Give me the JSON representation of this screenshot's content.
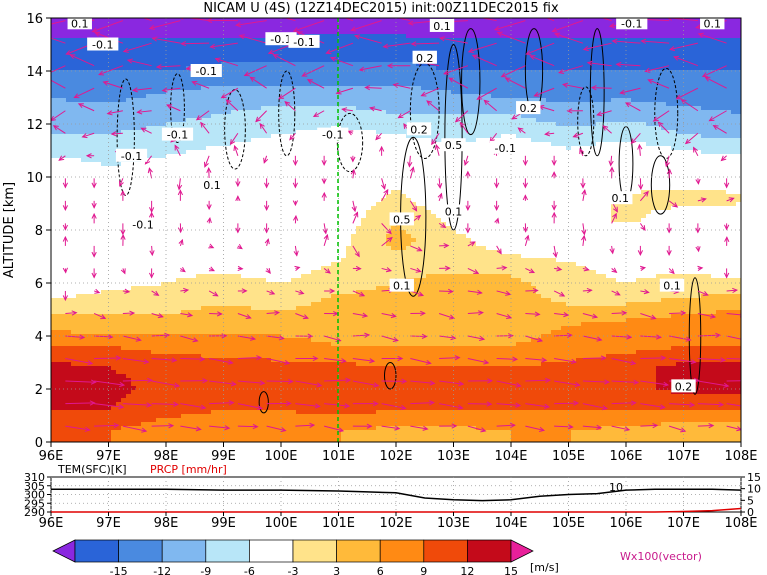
{
  "header": {
    "title": "NICAM U (4S) (12Z14DEC2015) init:00Z11DEC2015 fix"
  },
  "colors": {
    "marker_line": "#00c000",
    "vector": "#e01890",
    "contour": "#000000"
  },
  "chart_data": [
    {
      "type": "heatmap",
      "title": "NICAM U (4S) (12Z14DEC2015) init:00Z11DEC2015 fix",
      "ylabel": "ALTITUDE [km]",
      "x_ticks": [
        "96E",
        "97E",
        "98E",
        "99E",
        "100E",
        "101E",
        "102E",
        "103E",
        "104E",
        "105E",
        "106E",
        "107E",
        "108E"
      ],
      "x_values": [
        96,
        97,
        98,
        99,
        100,
        101,
        102,
        103,
        104,
        105,
        106,
        107,
        108
      ],
      "y_ticks": [
        "0",
        "2",
        "4",
        "6",
        "8",
        "10",
        "12",
        "14",
        "16"
      ],
      "y_values": [
        0,
        2,
        4,
        6,
        8,
        10,
        12,
        14,
        16
      ],
      "xlim": [
        96,
        108
      ],
      "ylim": [
        0,
        16
      ],
      "marker_longitude": 101,
      "u_field_rows": [
        {
          "alt_range": [
            0,
            0.8
          ],
          "values": [
            12,
            12,
            10,
            10,
            9,
            9,
            8,
            8,
            9,
            9,
            8,
            7,
            6
          ]
        },
        {
          "alt_range": [
            0.8,
            1.6
          ],
          "values": [
            15,
            15,
            13,
            12,
            12,
            13,
            12,
            12,
            12,
            12,
            12,
            12,
            12
          ]
        },
        {
          "alt_range": [
            1.6,
            2.4
          ],
          "values": [
            16,
            16,
            14,
            14,
            14,
            14,
            13,
            13,
            13,
            14,
            14,
            16,
            16
          ]
        },
        {
          "alt_range": [
            2.4,
            3.2
          ],
          "values": [
            16,
            15,
            14,
            14,
            13,
            13,
            12,
            12,
            12,
            13,
            14,
            16,
            16
          ]
        },
        {
          "alt_range": [
            3.2,
            4.0
          ],
          "values": [
            12,
            12,
            11,
            10,
            10,
            9,
            9,
            9,
            9,
            10,
            11,
            12,
            12
          ]
        },
        {
          "alt_range": [
            4.0,
            4.8
          ],
          "values": [
            8,
            7,
            7,
            8,
            8,
            8,
            8,
            8,
            8,
            9,
            10,
            11,
            12
          ]
        },
        {
          "alt_range": [
            4.8,
            5.6
          ],
          "values": [
            4,
            5,
            5,
            6,
            5,
            7,
            7,
            8,
            7,
            6,
            6,
            7,
            8
          ]
        },
        {
          "alt_range": [
            5.6,
            6.4
          ],
          "values": [
            0,
            2,
            3,
            4,
            3,
            5,
            6,
            7,
            7,
            4,
            3,
            4,
            4
          ]
        },
        {
          "alt_range": [
            6.4,
            7.2
          ],
          "values": [
            0,
            0,
            2,
            2,
            1,
            3,
            5,
            5,
            4,
            3,
            2,
            2,
            0
          ]
        },
        {
          "alt_range": [
            7.2,
            8.0
          ],
          "values": [
            0,
            0,
            0,
            3,
            0,
            2,
            7,
            4,
            1,
            0,
            0,
            0,
            0
          ]
        },
        {
          "alt_range": [
            8.0,
            8.8
          ],
          "values": [
            0,
            0,
            0,
            0,
            0,
            1,
            6,
            2,
            0,
            0,
            4,
            0,
            0
          ]
        },
        {
          "alt_range": [
            8.8,
            9.6
          ],
          "values": [
            0,
            0,
            0,
            0,
            0,
            0,
            4,
            0,
            0,
            0,
            4,
            5,
            4
          ]
        },
        {
          "alt_range": [
            9.6,
            10.4
          ],
          "values": [
            0,
            -2,
            -1,
            0,
            0,
            0,
            2,
            0,
            0,
            0,
            0,
            0,
            0
          ]
        },
        {
          "alt_range": [
            10.4,
            11.2
          ],
          "values": [
            -3,
            -4,
            -3,
            -2,
            -1,
            0,
            0,
            -2,
            0,
            -2,
            0,
            -2,
            -3
          ]
        },
        {
          "alt_range": [
            11.2,
            12.0
          ],
          "values": [
            -6,
            -6,
            -5,
            -4,
            -3,
            -2,
            -3,
            -4,
            -3,
            -5,
            -4,
            -6,
            -7
          ]
        },
        {
          "alt_range": [
            12.0,
            12.8
          ],
          "values": [
            -7,
            -8,
            -7,
            -6,
            -5,
            -5,
            -6,
            -6,
            -6,
            -8,
            -7,
            -8,
            -9
          ]
        },
        {
          "alt_range": [
            12.8,
            13.6
          ],
          "values": [
            -10,
            -10,
            -9,
            -8,
            -8,
            -8,
            -8,
            -9,
            -10,
            -10,
            -10,
            -11,
            -11
          ]
        },
        {
          "alt_range": [
            13.6,
            14.4
          ],
          "values": [
            -12,
            -12,
            -12,
            -11,
            -11,
            -11,
            -11,
            -12,
            -12,
            -12,
            -12,
            -12,
            -12
          ]
        },
        {
          "alt_range": [
            14.4,
            15.2
          ],
          "values": [
            -14,
            -14,
            -14,
            -14,
            -13,
            -13,
            -13,
            -14,
            -14,
            -14,
            -14,
            -14,
            -14
          ]
        },
        {
          "alt_range": [
            15.2,
            16.0
          ],
          "values": [
            -16,
            -16,
            -16,
            -16,
            -16,
            -16,
            -16,
            -16,
            -16,
            -16,
            -16,
            -16,
            -16
          ]
        }
      ],
      "contour_labels": [
        "-0.1",
        "-0.1",
        "-0.1",
        "-0.1",
        "-0.1",
        "-0.1",
        "-0.1",
        "-0.1",
        "-0.1",
        "-0.1",
        "0.1",
        "0.1",
        "0.1",
        "0.1",
        "0.1",
        "0.1",
        "0.2",
        "0.2",
        "0.2",
        "0.2",
        "0.5",
        "0.5",
        "0.1",
        "0.1"
      ]
    },
    {
      "type": "line",
      "series": [
        {
          "name": "TEM(SFC)[K]",
          "color": "#000000",
          "x": [
            96,
            97,
            98,
            99,
            100,
            101,
            101.5,
            102,
            102.5,
            103,
            103.5,
            104,
            104.5,
            105,
            105.5,
            106,
            106.5,
            107,
            107.5,
            108
          ],
          "values": [
            303,
            303,
            303,
            302.5,
            302.5,
            302,
            301.5,
            301,
            298,
            297,
            296.5,
            297,
            299,
            300,
            300.5,
            302.5,
            303,
            303,
            303,
            302.5
          ]
        },
        {
          "name": "PRCP [mm/hr]",
          "color": "#e00000",
          "x": [
            96,
            97,
            98,
            99,
            100,
            101,
            102,
            103,
            104,
            105,
            106,
            106.5,
            107,
            107.5,
            108
          ],
          "values": [
            0,
            0,
            0,
            0,
            0,
            0,
            0,
            0,
            0,
            0,
            0,
            0,
            0.2,
            0.6,
            1.5
          ]
        }
      ],
      "x_ticks": [
        "96E",
        "97E",
        "98E",
        "99E",
        "100E",
        "101E",
        "102E",
        "103E",
        "104E",
        "105E",
        "106E",
        "107E",
        "108E"
      ],
      "x_values": [
        96,
        97,
        98,
        99,
        100,
        101,
        102,
        103,
        104,
        105,
        106,
        107,
        108
      ],
      "y_left_ticks": [
        "290",
        "295",
        "300",
        "305",
        "310"
      ],
      "y_right_ticks": [
        "0",
        "5",
        "10",
        "15"
      ],
      "ylim_left": [
        290,
        310
      ],
      "ylim_right": [
        0,
        15
      ],
      "annotation": "10"
    }
  ],
  "colorbar": {
    "labels": [
      "-15",
      "-12",
      "-9",
      "-6",
      "-3",
      "3",
      "6",
      "9",
      "12",
      "15"
    ],
    "unit": "[m/s]",
    "colors": [
      "#8a28e0",
      "#2a64d8",
      "#4a8ae0",
      "#80b8f0",
      "#b8e6f8",
      "#ffffff",
      "#ffe38a",
      "#ffba3a",
      "#ff8a14",
      "#f04a0a",
      "#c40a1a",
      "#e8209a"
    ]
  },
  "vector_legend": "Wx100(vector)"
}
